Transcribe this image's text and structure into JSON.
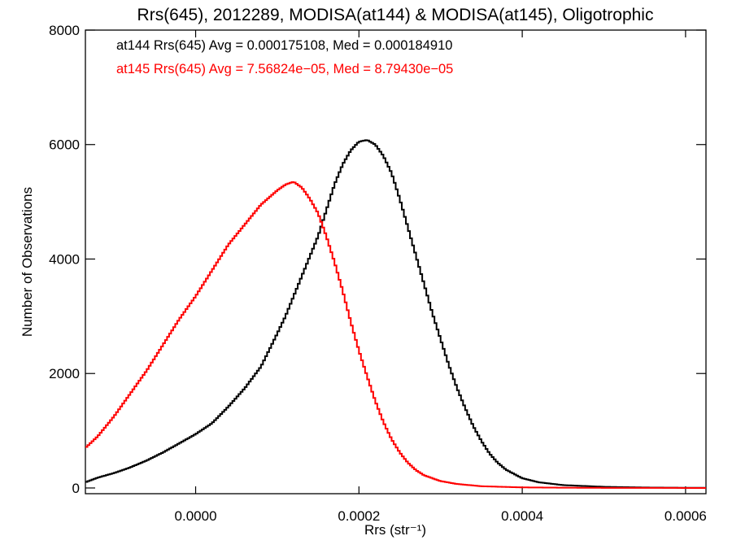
{
  "chart_data": {
    "type": "line",
    "title": "Rrs(645), 2012289, MODISA(at144) & MODISA(at145), Oligotrophic",
    "xlabel": "Rrs (str⁻¹)",
    "ylabel": "Number of Observations",
    "xlim": [
      -0.000135,
      0.000625
    ],
    "ylim": [
      -100,
      8000
    ],
    "xticks": [
      0.0,
      0.0002,
      0.0004,
      0.0006
    ],
    "xtick_labels": [
      "0.0000",
      "0.0002",
      "0.0004",
      "0.0006"
    ],
    "yticks": [
      0,
      2000,
      4000,
      6000,
      8000
    ],
    "ytick_labels": [
      "0",
      "2000",
      "4000",
      "6000",
      "8000"
    ],
    "grid": false,
    "annotations": [
      {
        "text": "at144 Rrs(645) Avg = 0.000175108, Med = 0.000184910",
        "color": "#000000"
      },
      {
        "text": "at145 Rrs(645) Avg = 7.56824e−05, Med = 8.79430e−05",
        "color": "#ff0000"
      }
    ],
    "series": [
      {
        "color": "#000000",
        "step": true,
        "points": [
          [
            -0.000135,
            100
          ],
          [
            -0.00012,
            180
          ],
          [
            -0.0001,
            260
          ],
          [
            -8e-05,
            360
          ],
          [
            -6e-05,
            480
          ],
          [
            -4e-05,
            620
          ],
          [
            -2e-05,
            780
          ],
          [
            0.0,
            940
          ],
          [
            2e-05,
            1130
          ],
          [
            4e-05,
            1420
          ],
          [
            6e-05,
            1740
          ],
          [
            8e-05,
            2120
          ],
          [
            0.0001,
            2700
          ],
          [
            0.00011,
            3000
          ],
          [
            0.00012,
            3350
          ],
          [
            0.00013,
            3700
          ],
          [
            0.00014,
            4050
          ],
          [
            0.00015,
            4400
          ],
          [
            0.00016,
            4850
          ],
          [
            0.00017,
            5300
          ],
          [
            0.00018,
            5650
          ],
          [
            0.00019,
            5900
          ],
          [
            0.0002,
            6050
          ],
          [
            0.00021,
            6080
          ],
          [
            0.00022,
            6000
          ],
          [
            0.00023,
            5800
          ],
          [
            0.00024,
            5500
          ],
          [
            0.00025,
            5050
          ],
          [
            0.00026,
            4550
          ],
          [
            0.00027,
            4050
          ],
          [
            0.00028,
            3550
          ],
          [
            0.00029,
            3050
          ],
          [
            0.0003,
            2600
          ],
          [
            0.00031,
            2150
          ],
          [
            0.00032,
            1750
          ],
          [
            0.00033,
            1400
          ],
          [
            0.00034,
            1080
          ],
          [
            0.00035,
            820
          ],
          [
            0.00036,
            600
          ],
          [
            0.00037,
            440
          ],
          [
            0.00038,
            320
          ],
          [
            0.0004,
            170
          ],
          [
            0.00042,
            100
          ],
          [
            0.00045,
            50
          ],
          [
            0.0005,
            20
          ],
          [
            0.00055,
            8
          ],
          [
            0.0006,
            3
          ],
          [
            0.000625,
            2
          ]
        ]
      },
      {
        "color": "#ff0000",
        "step": true,
        "points": [
          [
            -0.000135,
            700
          ],
          [
            -0.00012,
            900
          ],
          [
            -0.0001,
            1250
          ],
          [
            -8e-05,
            1650
          ],
          [
            -6e-05,
            2050
          ],
          [
            -4e-05,
            2500
          ],
          [
            -2e-05,
            2950
          ],
          [
            0.0,
            3350
          ],
          [
            2e-05,
            3800
          ],
          [
            4e-05,
            4250
          ],
          [
            6e-05,
            4600
          ],
          [
            8e-05,
            4950
          ],
          [
            0.0001,
            5200
          ],
          [
            0.00011,
            5300
          ],
          [
            0.00012,
            5350
          ],
          [
            0.00013,
            5250
          ],
          [
            0.00014,
            5050
          ],
          [
            0.00015,
            4800
          ],
          [
            0.00016,
            4400
          ],
          [
            0.00017,
            3950
          ],
          [
            0.00018,
            3450
          ],
          [
            0.00019,
            2900
          ],
          [
            0.0002,
            2400
          ],
          [
            0.00021,
            1950
          ],
          [
            0.00022,
            1520
          ],
          [
            0.00023,
            1150
          ],
          [
            0.00024,
            850
          ],
          [
            0.00025,
            620
          ],
          [
            0.00026,
            440
          ],
          [
            0.00027,
            310
          ],
          [
            0.00028,
            220
          ],
          [
            0.0003,
            120
          ],
          [
            0.00032,
            70
          ],
          [
            0.00035,
            30
          ],
          [
            0.0004,
            10
          ],
          [
            0.00045,
            5
          ],
          [
            0.0005,
            2
          ],
          [
            0.00055,
            1
          ],
          [
            0.000625,
            0
          ]
        ]
      }
    ]
  }
}
